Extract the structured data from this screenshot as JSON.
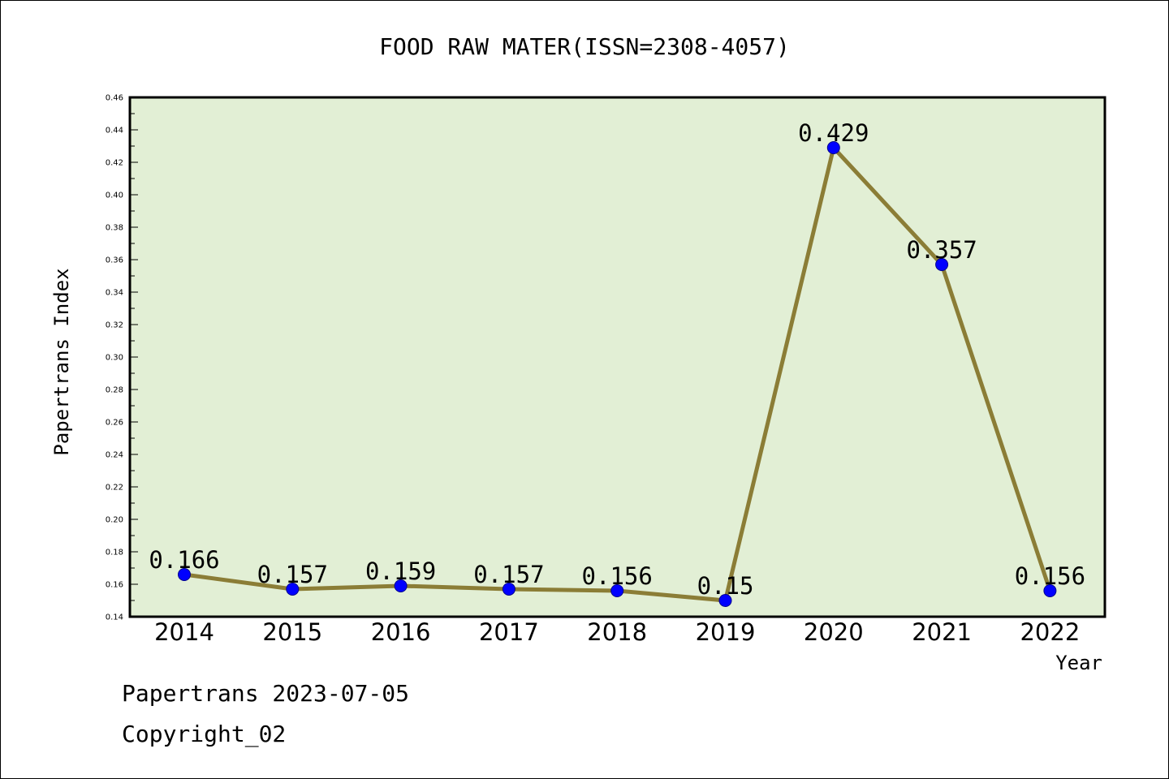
{
  "chart_data": {
    "type": "line",
    "title": "FOOD RAW MATER(ISSN=2308-4057)",
    "xlabel": "Year",
    "ylabel": "Papertrans Index",
    "categories": [
      "2014",
      "2015",
      "2016",
      "2017",
      "2018",
      "2019",
      "2020",
      "2021",
      "2022"
    ],
    "series": [
      {
        "values": [
          0.166,
          0.157,
          0.159,
          0.157,
          0.156,
          0.15,
          0.429,
          0.357,
          0.156
        ],
        "value_labels": [
          "0.166",
          "0.157",
          "0.159",
          "0.157",
          "0.156",
          "0.15",
          "0.429",
          "0.357",
          "0.156"
        ]
      }
    ],
    "ylim": [
      0.14,
      0.46
    ],
    "yticks": [
      "0.14",
      "0.16",
      "0.18",
      "0.20",
      "0.22",
      "0.24",
      "0.26",
      "0.28",
      "0.30",
      "0.32",
      "0.34",
      "0.36",
      "0.38",
      "0.40",
      "0.42",
      "0.44",
      "0.46"
    ],
    "grid": false,
    "colors": {
      "plot_background": "#e2efd5",
      "line": "#8b7d36",
      "marker": "#0000ff"
    }
  },
  "footer": {
    "line1": "Papertrans 2023-07-05",
    "line2": "Copyright_02"
  }
}
